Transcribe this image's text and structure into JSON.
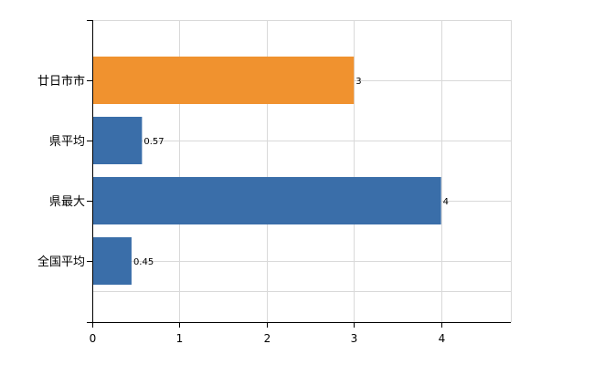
{
  "chart_data": {
    "type": "bar",
    "orientation": "horizontal",
    "categories": [
      "廿日市市",
      "県平均",
      "県最大",
      "全国平均"
    ],
    "values": [
      3,
      0.57,
      4,
      0.45
    ],
    "value_labels": [
      "3",
      "0.57",
      "4",
      "0.45"
    ],
    "bar_colors": [
      "#f0922f",
      "#3a6ea9",
      "#3a6ea9",
      "#3a6ea9"
    ],
    "xlim": [
      0,
      4.8
    ],
    "x_ticks": [
      0,
      1,
      2,
      3,
      4
    ],
    "grid": true,
    "legend": "none"
  }
}
